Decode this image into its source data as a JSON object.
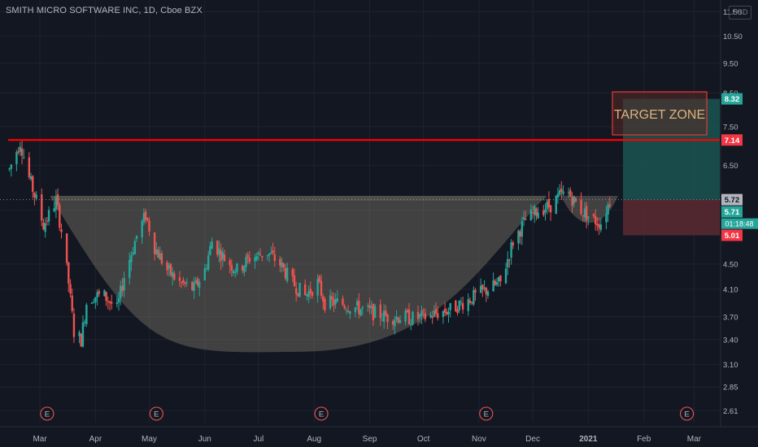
{
  "header": {
    "symbol_title": "SMITH MICRO SOFTWARE INC, 1D, Cboe BZX",
    "currency": "USD"
  },
  "colors": {
    "background": "#131722",
    "grid": "#1f2330",
    "up": "#26a69a",
    "down": "#ef5350",
    "resistance_line": "#ff0000",
    "cup_fill": "#8c8670",
    "target_zone_border": "#e53935",
    "profit_fill": "#1b5e57",
    "loss_fill": "#5c2a31",
    "axis_text": "#b2b5be"
  },
  "chart_data": {
    "type": "candlestick",
    "title": "SMITH MICRO SOFTWARE INC, 1D, Cboe BZX",
    "x_axis": [
      "Mar",
      "Apr",
      "May",
      "Jun",
      "Jul",
      "Aug",
      "Sep",
      "Oct",
      "Nov",
      "Dec",
      "2021",
      "Feb",
      "Mar"
    ],
    "y_axis_scale": "log",
    "y_ticks": [
      "11.50",
      "10.50",
      "9.50",
      "8.50",
      "7.50",
      "6.50",
      "5.50",
      "4.50",
      "4.10",
      "3.70",
      "3.40",
      "3.10",
      "2.85",
      "2.61"
    ],
    "y_range": [
      2.55,
      11.8
    ],
    "price_path": [
      [
        "2020-02-13",
        6.4
      ],
      [
        "2020-02-19",
        7.1
      ],
      [
        "2020-02-24",
        6.2
      ],
      [
        "2020-02-28",
        5.7
      ],
      [
        "2020-03-03",
        5.2
      ],
      [
        "2020-03-06",
        5.4
      ],
      [
        "2020-03-10",
        5.7
      ],
      [
        "2020-03-13",
        5.1
      ],
      [
        "2020-03-17",
        4.2
      ],
      [
        "2020-03-20",
        3.5
      ],
      [
        "2020-03-24",
        3.4
      ],
      [
        "2020-03-27",
        3.9
      ],
      [
        "2020-03-31",
        4.0
      ],
      [
        "2020-04-06",
        4.0
      ],
      [
        "2020-04-13",
        3.8
      ],
      [
        "2020-04-17",
        4.3
      ],
      [
        "2020-04-24",
        5.0
      ],
      [
        "2020-04-29",
        5.4
      ],
      [
        "2020-05-04",
        4.8
      ],
      [
        "2020-05-11",
        4.4
      ],
      [
        "2020-05-18",
        4.2
      ],
      [
        "2020-05-26",
        4.1
      ],
      [
        "2020-06-01",
        4.4
      ],
      [
        "2020-06-05",
        4.9
      ],
      [
        "2020-06-12",
        4.6
      ],
      [
        "2020-06-19",
        4.4
      ],
      [
        "2020-06-26",
        4.6
      ],
      [
        "2020-07-06",
        4.7
      ],
      [
        "2020-07-13",
        4.5
      ],
      [
        "2020-07-20",
        4.2
      ],
      [
        "2020-07-27",
        4.0
      ],
      [
        "2020-08-03",
        4.2
      ],
      [
        "2020-08-07",
        3.9
      ],
      [
        "2020-08-14",
        3.9
      ],
      [
        "2020-08-21",
        3.85
      ],
      [
        "2020-08-28",
        3.8
      ],
      [
        "2020-09-04",
        3.75
      ],
      [
        "2020-09-11",
        3.7
      ],
      [
        "2020-09-18",
        3.7
      ],
      [
        "2020-09-25",
        3.68
      ],
      [
        "2020-10-02",
        3.7
      ],
      [
        "2020-10-09",
        3.75
      ],
      [
        "2020-10-16",
        3.8
      ],
      [
        "2020-10-23",
        3.9
      ],
      [
        "2020-10-30",
        4.0
      ],
      [
        "2020-11-06",
        4.1
      ],
      [
        "2020-11-13",
        4.2
      ],
      [
        "2020-11-20",
        4.9
      ],
      [
        "2020-11-27",
        5.3
      ],
      [
        "2020-12-04",
        5.5
      ],
      [
        "2020-12-11",
        5.6
      ],
      [
        "2020-12-16",
        5.8
      ],
      [
        "2020-12-21",
        5.85
      ],
      [
        "2020-12-28",
        5.5
      ],
      [
        "2021-01-04",
        5.3
      ],
      [
        "2021-01-08",
        5.25
      ],
      [
        "2021-01-13",
        5.7
      ]
    ],
    "cup_rim": 5.8,
    "cup_bottom": 3.25,
    "earnings_markers": [
      "2020-03-05",
      "2020-05-05",
      "2020-08-05",
      "2020-11-05",
      "2021-02-25"
    ],
    "levels": [
      {
        "name": "resistance",
        "value": 7.14,
        "label": "7.14"
      },
      {
        "name": "target",
        "value": 8.32,
        "label": "8.32"
      },
      {
        "name": "entry",
        "value": 5.72,
        "label": "5.72"
      },
      {
        "name": "last",
        "value": 5.71,
        "label": "5.71"
      },
      {
        "name": "stop",
        "value": 5.01,
        "label": "5.01"
      }
    ],
    "countdown": "01:18:48",
    "annotation": "TARGET ZONE",
    "earnings_label": "E",
    "grid": true
  }
}
